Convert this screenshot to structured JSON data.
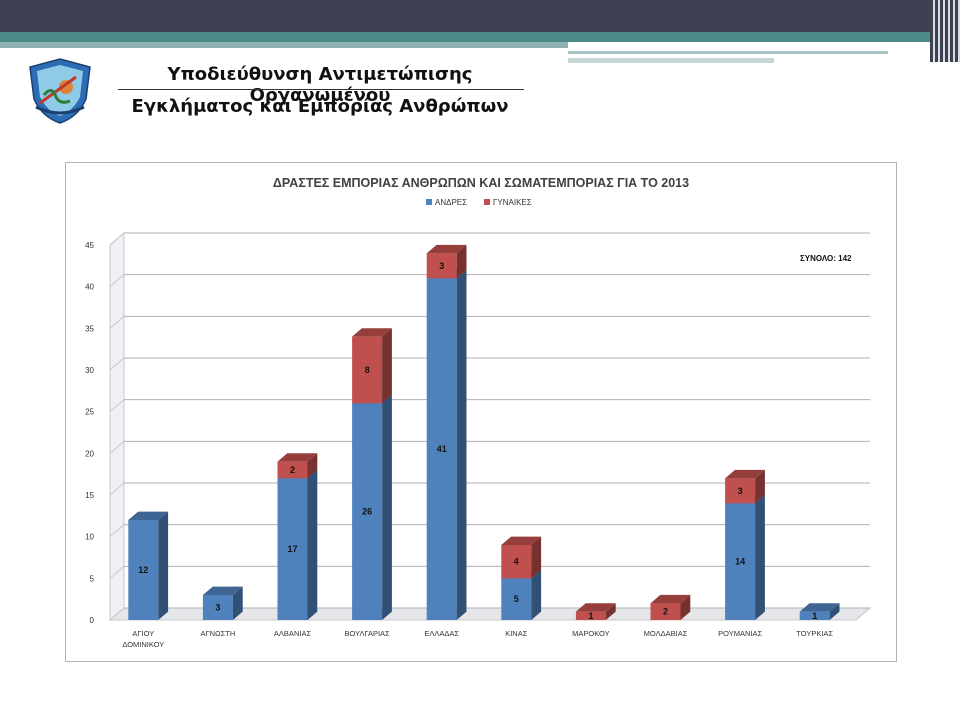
{
  "header": {
    "title_line1": "Υποδιεύθυνση Αντιμετώπισης Οργανωμένου",
    "title_line2": "Εγκλήματος και Εμπορίας Ανθρώπων"
  },
  "colors": {
    "men": "#4f81bd",
    "women": "#c0504d"
  },
  "chart_data": {
    "type": "bar",
    "stacked": true,
    "title": "ΔΡΑΣΤΕΣ ΕΜΠΟΡΙΑΣ ΑΝΘΡΩΠΩΝ ΚΑΙ ΣΩΜΑΤΕΜΠΟΡΙΑΣ ΓΙΑ ΤΟ 2013",
    "categories": [
      "ΑΓΙΟΥ ΔΟΜΙΝΙΚΟΥ",
      "ΑΓΝΩΣΤΗ",
      "ΑΛΒΑΝΙΑΣ",
      "ΒΟΥΛΓΑΡΙΑΣ",
      "ΕΛΛΑΔΑΣ",
      "ΚΙΝΑΣ",
      "ΜΑΡΟΚΟΥ",
      "ΜΟΛΔΑΒΙΑΣ",
      "ΡΟΥΜΑΝΙΑΣ",
      "ΤΟΥΡΚΙΑΣ"
    ],
    "series": [
      {
        "name": "ΑΝΔΡΕΣ",
        "values": [
          12,
          3,
          17,
          26,
          41,
          5,
          0,
          0,
          14,
          1
        ]
      },
      {
        "name": "ΓΥΝΑΙΚΕΣ",
        "values": [
          0,
          0,
          2,
          8,
          3,
          4,
          1,
          2,
          3,
          0
        ]
      }
    ],
    "yticks": [
      "0",
      "5",
      "10",
      "15",
      "20",
      "25",
      "30",
      "35",
      "40",
      "45"
    ],
    "ylim": [
      0,
      45
    ],
    "grid": true,
    "legend": "top-center",
    "annotation": "ΣΥΝΟΛΟ: 142"
  }
}
